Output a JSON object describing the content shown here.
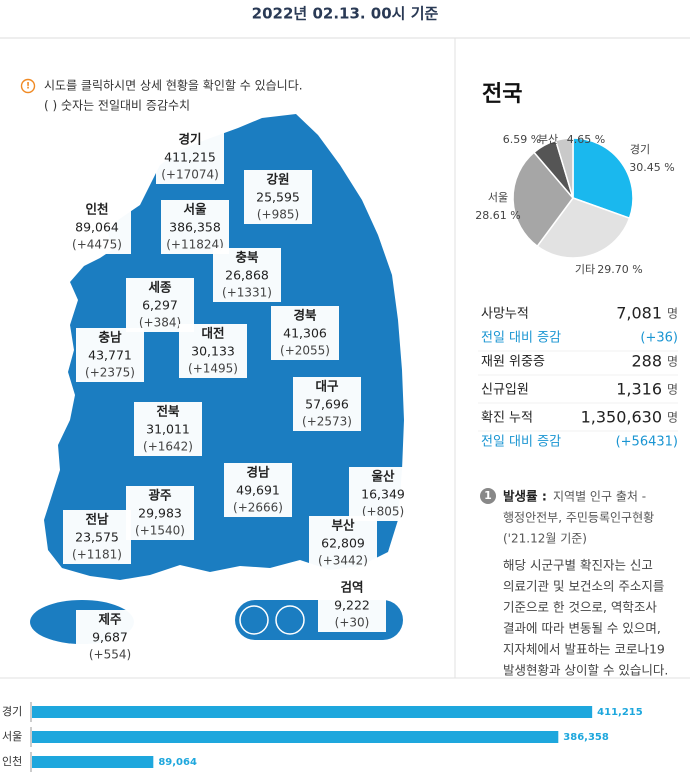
{
  "header": {
    "title": "2022년 02.13. 00시 기준"
  },
  "notice": {
    "lines": [
      "시도를 클릭하시면 상세 현황을 확인할 수 있습니다.",
      "( ) 숫자는 전일대비 증감수치"
    ]
  },
  "regions": [
    {
      "name": "경기",
      "total": "411,215",
      "change": "(+17074)"
    },
    {
      "name": "강원",
      "total": "25,595",
      "change": "(+985)"
    },
    {
      "name": "인천",
      "total": "89,064",
      "change": "(+4475)"
    },
    {
      "name": "서울",
      "total": "386,358",
      "change": "(+11824)"
    },
    {
      "name": "충북",
      "total": "26,868",
      "change": "(+1331)"
    },
    {
      "name": "세종",
      "total": "6,297",
      "change": "(+384)"
    },
    {
      "name": "충남",
      "total": "43,771",
      "change": "(+2375)"
    },
    {
      "name": "대전",
      "total": "30,133",
      "change": "(+1495)"
    },
    {
      "name": "경북",
      "total": "41,306",
      "change": "(+2055)"
    },
    {
      "name": "대구",
      "total": "57,696",
      "change": "(+2573)"
    },
    {
      "name": "전북",
      "total": "31,011",
      "change": "(+1642)"
    },
    {
      "name": "경남",
      "total": "49,691",
      "change": "(+2666)"
    },
    {
      "name": "울산",
      "total": "16,349",
      "change": "(+805)"
    },
    {
      "name": "광주",
      "total": "29,983",
      "change": "(+1540)"
    },
    {
      "name": "전남",
      "total": "23,575",
      "change": "(+1181)"
    },
    {
      "name": "부산",
      "total": "62,809",
      "change": "(+3442)"
    },
    {
      "name": "검역",
      "total": "9,222",
      "change": "(+30)"
    },
    {
      "name": "제주",
      "total": "9,687",
      "change": "(+554)"
    }
  ],
  "panel": {
    "title": "전국"
  },
  "stats": [
    {
      "label": "사망누적",
      "value": "7,081",
      "unit": "명"
    },
    {
      "label": "전일 대비 증감",
      "value": "(+36)"
    },
    {
      "label": "재원 위중증",
      "value": "288",
      "unit": "명"
    },
    {
      "label": "신규입원",
      "value": "1,316",
      "unit": "명"
    },
    {
      "label": "확진 누적",
      "value": "1,350,630",
      "unit": "명"
    },
    {
      "label": "전일 대비 증감",
      "value": "(+56431)"
    }
  ],
  "note": {
    "badge": "1",
    "title": "발생률 :",
    "source": [
      "지역별 인구 출처 -",
      "행정안전부, 주민등록인구현황",
      "('21.12월 기준)"
    ],
    "body": [
      "해당 시군구별 확진자는 신고",
      "의료기관 및 보건소의 주소지를",
      "기준으로 한 것으로, 역학조사",
      "결과에 따라 변동될 수 있으며,",
      "지자체에서 발표하는 코로나19",
      "발생현황과 상이할 수 있습니다."
    ]
  },
  "chart_data": [
    {
      "type": "pie",
      "categories": [
        "경기",
        "기타",
        "서울",
        "인천",
        "부산"
      ],
      "values": [
        30.45,
        29.7,
        28.61,
        6.59,
        4.65
      ],
      "value_labels": [
        "30.45 %",
        "29.70 %",
        "28.61 %",
        "6.59 %",
        "4.65 %"
      ],
      "colors": [
        "#1ab8ee",
        "#e2e2e2",
        "#a6a6a6",
        "#555555",
        "#c9c9c9"
      ]
    },
    {
      "type": "bar",
      "orientation": "horizontal",
      "categories": [
        "경기",
        "서울",
        "인천"
      ],
      "values": [
        411215,
        386358,
        89064
      ],
      "value_labels": [
        "411,215",
        "386,358",
        "89,064"
      ],
      "color": "#1ea7dd",
      "xlim": [
        0,
        450000
      ]
    }
  ]
}
